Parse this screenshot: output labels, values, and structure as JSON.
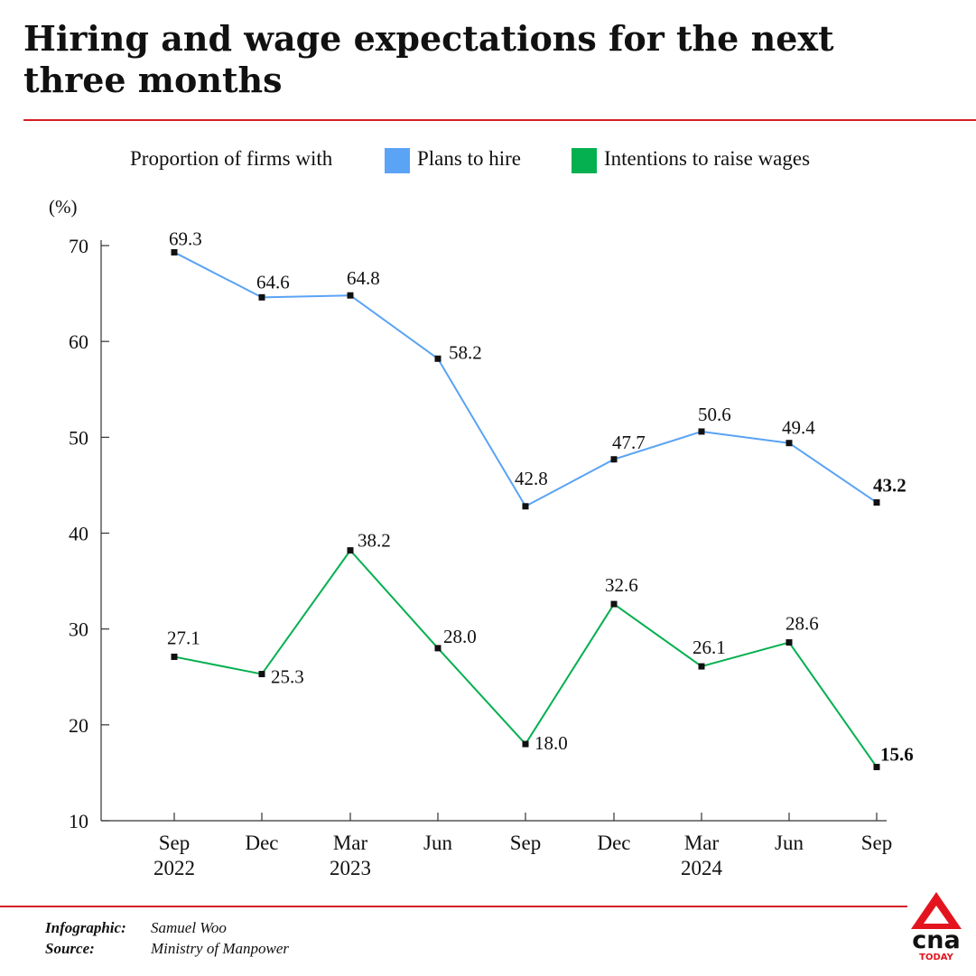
{
  "title": "Hiring and wage expectations for the next three months",
  "legend": {
    "prefix": "Proportion of firms with",
    "items": [
      {
        "label": "Plans to hire",
        "color": "#5aa3f5"
      },
      {
        "label": "Intentions to raise wages",
        "color": "#04b04f"
      }
    ]
  },
  "chart_data": {
    "type": "line",
    "ylabel": "(%)",
    "ylim": [
      10,
      70
    ],
    "yticks": [
      10,
      20,
      30,
      40,
      50,
      60,
      70
    ],
    "grid": false,
    "legend_position": "top",
    "categories": [
      [
        "Sep",
        "2022"
      ],
      [
        "Dec",
        ""
      ],
      [
        "Mar",
        "2023"
      ],
      [
        "Jun",
        ""
      ],
      [
        "Sep",
        ""
      ],
      [
        "Dec",
        ""
      ],
      [
        "Mar",
        "2024"
      ],
      [
        "Jun",
        ""
      ],
      [
        "Sep",
        ""
      ]
    ],
    "series": [
      {
        "name": "Plans to hire",
        "color": "#5aa3f5",
        "values": [
          69.3,
          64.6,
          64.8,
          58.2,
          42.8,
          47.7,
          50.6,
          49.4,
          43.2
        ],
        "labels": [
          "69.3",
          "64.6",
          "64.8",
          "58.2",
          "42.8",
          "47.7",
          "50.6",
          "49.4",
          "43.2"
        ]
      },
      {
        "name": "Intentions to raise wages",
        "color": "#04b04f",
        "values": [
          27.1,
          25.3,
          38.2,
          28.0,
          18.0,
          32.6,
          26.1,
          28.6,
          15.6
        ],
        "labels": [
          "27.1",
          "25.3",
          "38.2",
          "28.0",
          "18.0",
          "32.6",
          "26.1",
          "28.6",
          "15.6"
        ]
      }
    ]
  },
  "credits": [
    {
      "key": "Infographic:",
      "value": "Samuel Woo"
    },
    {
      "key": "Source:",
      "value": "Ministry of Manpower"
    }
  ],
  "logo": {
    "word": "cna",
    "sub": "TODAY",
    "accent_color": "#e3141e"
  },
  "accent_color": "#d42027"
}
